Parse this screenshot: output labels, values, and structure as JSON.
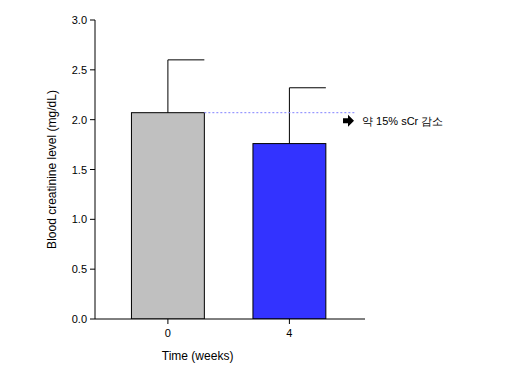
{
  "chart_data": {
    "type": "bar",
    "x_label": "Time (weeks)",
    "y_label": "Blood creatinine level (mg/dL)",
    "categories": [
      "0",
      "4"
    ],
    "values": [
      2.07,
      1.76
    ],
    "errors": [
      0.53,
      0.56
    ],
    "colors": [
      "#c0c0c0",
      "#3333ff"
    ],
    "ylim": [
      0,
      3
    ],
    "yticks": [
      {
        "value": 0,
        "label": "0.0"
      },
      {
        "value": 0.5,
        "label": "0.5"
      },
      {
        "value": 1,
        "label": "1.0"
      },
      {
        "value": 1.5,
        "label": "1.5"
      },
      {
        "value": 2,
        "label": "2.0"
      },
      {
        "value": 2.5,
        "label": "2.5"
      },
      {
        "value": 3,
        "label": "3.0"
      }
    ],
    "annotation": "약 15% sCr 감소"
  }
}
